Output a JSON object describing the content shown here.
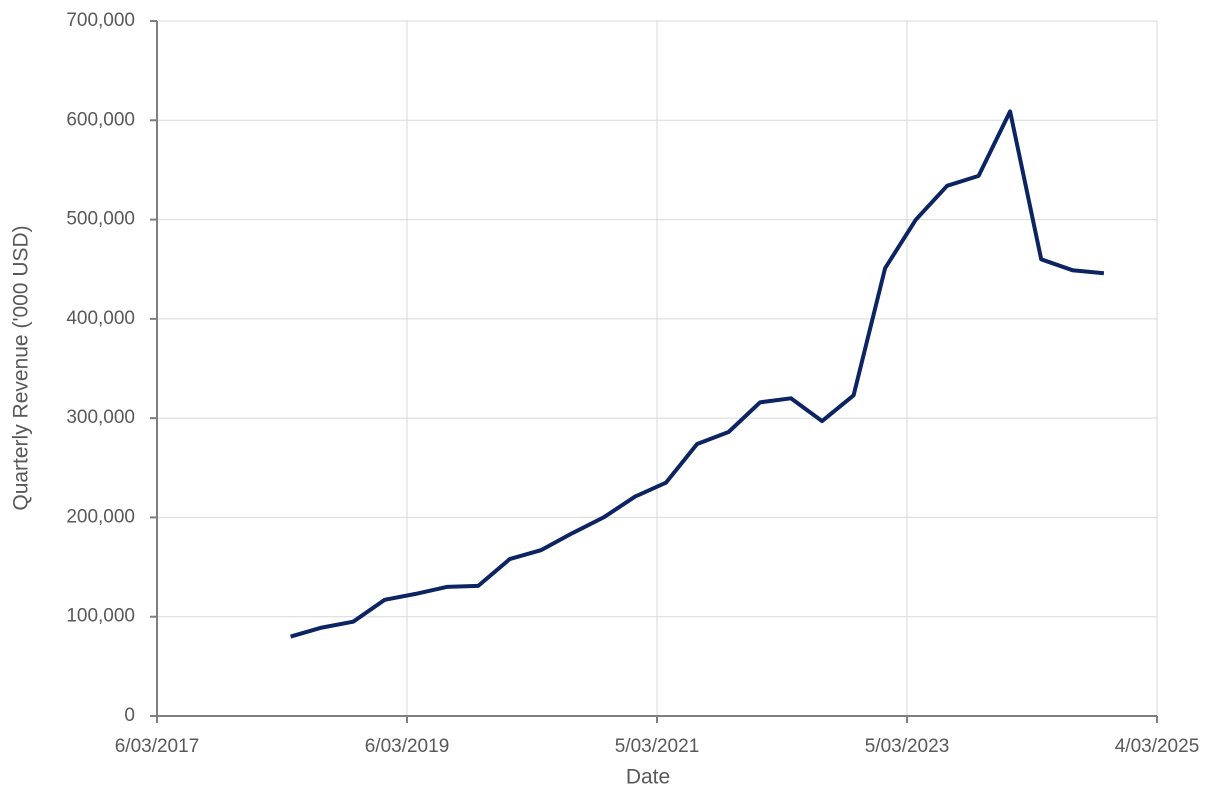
{
  "chart_data": {
    "type": "line",
    "x_label": "Date",
    "y_label": "Quarterly Revenue ('000 USD)",
    "x": [
      "2018-03-31",
      "2018-06-30",
      "2018-09-30",
      "2018-12-31",
      "2019-03-31",
      "2019-06-30",
      "2019-09-30",
      "2019-12-31",
      "2020-03-31",
      "2020-06-30",
      "2020-09-30",
      "2020-12-31",
      "2021-03-31",
      "2021-06-30",
      "2021-09-30",
      "2021-12-31",
      "2022-03-31",
      "2022-06-30",
      "2022-09-30",
      "2022-12-31",
      "2023-03-31",
      "2023-06-30",
      "2023-09-30",
      "2023-12-31",
      "2024-03-31",
      "2024-06-30",
      "2024-09-30"
    ],
    "series": [
      {
        "name": "Quarterly Revenue",
        "color": "#0c2461",
        "values": [
          80000,
          89000,
          95000,
          117000,
          123000,
          130000,
          131000,
          158000,
          167000,
          184000,
          200000,
          221000,
          235000,
          274000,
          286000,
          316000,
          320000,
          297000,
          323000,
          451000,
          500000,
          534000,
          544000,
          609000,
          460000,
          449000,
          446000
        ]
      }
    ],
    "xlim": [
      "2017-03-06",
      "2025-03-04"
    ],
    "xticks": [
      {
        "value": "2017-03-06",
        "label": "6/03/2017"
      },
      {
        "value": "2019-03-06",
        "label": "6/03/2019"
      },
      {
        "value": "2021-03-05",
        "label": "5/03/2021"
      },
      {
        "value": "2023-03-05",
        "label": "5/03/2023"
      },
      {
        "value": "2025-03-04",
        "label": "4/03/2025"
      }
    ],
    "ylim": [
      0,
      700000
    ],
    "yticks": [
      0,
      {
        "value": 100000,
        "label": "100,000"
      },
      {
        "value": 200000,
        "label": "200,000"
      },
      {
        "value": 300000,
        "label": "300,000"
      },
      {
        "value": 400000,
        "label": "400,000"
      },
      {
        "value": 500000,
        "label": "500,000"
      },
      {
        "value": 600000,
        "label": "600,000"
      },
      {
        "value": 700000,
        "label": "700,000"
      }
    ],
    "grid": true
  }
}
